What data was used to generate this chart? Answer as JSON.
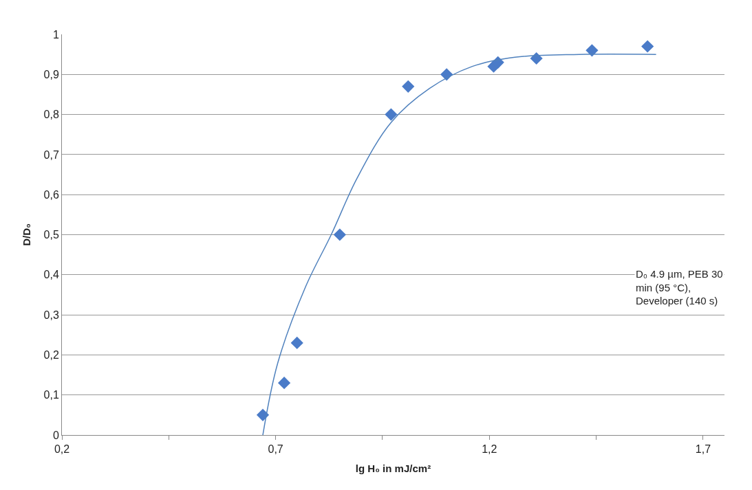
{
  "chart_data": {
    "type": "scatter",
    "xlabel": "lg H₀ in mJ/cm²",
    "ylabel": "D/D₀",
    "series": [
      {
        "color": "#4a7bc8",
        "marker": "diamond",
        "x": [
          0.67,
          0.72,
          0.75,
          0.85,
          0.97,
          1.01,
          1.1,
          1.21,
          1.22,
          1.31,
          1.44,
          1.57
        ],
        "values": [
          0.05,
          0.13,
          0.23,
          0.5,
          0.8,
          0.87,
          0.9,
          0.92,
          0.93,
          0.94,
          0.96,
          0.97
        ]
      },
      {
        "type": "line",
        "color": "#4f81bd",
        "marker": "none",
        "line_style": "solid",
        "x": [
          0.67,
          0.705,
          0.77,
          0.83,
          0.89,
          0.97,
          1.06,
          1.16,
          1.26,
          1.41,
          1.59
        ],
        "values": [
          0,
          0.18,
          0.37,
          0.5,
          0.64,
          0.78,
          0.865,
          0.92,
          0.943,
          0.95,
          0.95
        ]
      }
    ],
    "xlim": [
      0.2,
      1.75
    ],
    "xticks": [
      {
        "value": 0.2,
        "label": "0,2"
      },
      {
        "value": 0.45,
        "label": null
      },
      {
        "value": 0.7,
        "label": "0,7"
      },
      {
        "value": 0.95,
        "label": null
      },
      {
        "value": 1.2,
        "label": "1,2"
      },
      {
        "value": 1.45,
        "label": null
      },
      {
        "value": 1.7,
        "label": "1,7"
      }
    ],
    "ylim": [
      0,
      1
    ],
    "yticks": [
      0,
      {
        "value": 0.1,
        "label": "0,1"
      },
      {
        "value": 0.2,
        "label": "0,2"
      },
      {
        "value": 0.3,
        "label": "0,3"
      },
      {
        "value": 0.4,
        "label": "0,4"
      },
      {
        "value": 0.5,
        "label": "0,5"
      },
      {
        "value": 0.6,
        "label": "0,6"
      },
      {
        "value": 0.7,
        "label": "0,7"
      },
      {
        "value": 0.8,
        "label": "0,8"
      },
      {
        "value": 0.9,
        "label": "0,9"
      },
      1
    ],
    "grid": "y",
    "annotations": [
      "D₀ 4.9 µm, PEB 30 min (95 °C), Developer (140 s)"
    ]
  }
}
